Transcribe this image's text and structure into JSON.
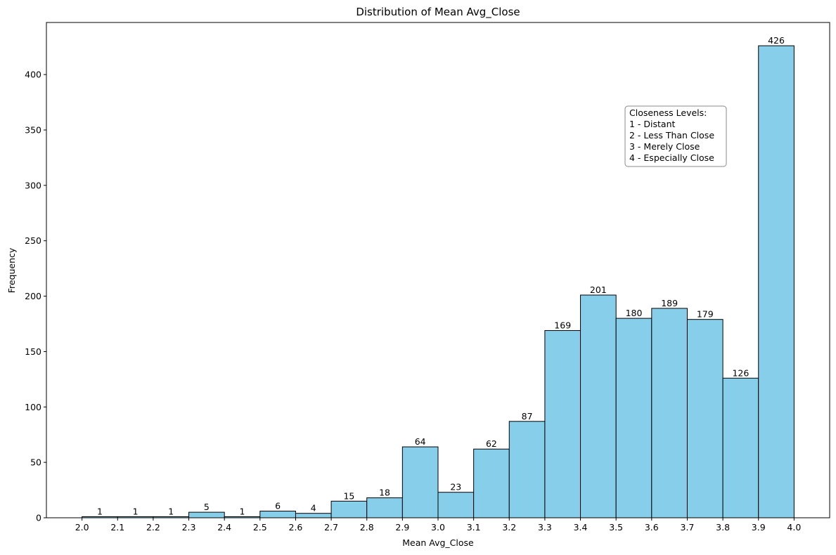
{
  "chart_data": {
    "type": "bar",
    "title": "Distribution of Mean Avg_Close",
    "xlabel": "Mean Avg_Close",
    "ylabel": "Frequency",
    "bin_edges": [
      2.0,
      2.1,
      2.2,
      2.3,
      2.4,
      2.5,
      2.6,
      2.7,
      2.8,
      2.9,
      3.0,
      3.1,
      3.2,
      3.3,
      3.4,
      3.5,
      3.6,
      3.7,
      3.8,
      3.9,
      4.0
    ],
    "values": [
      1,
      1,
      1,
      5,
      1,
      6,
      4,
      15,
      18,
      64,
      23,
      62,
      87,
      169,
      201,
      180,
      189,
      179,
      126,
      426
    ],
    "xlim": [
      1.9,
      4.1
    ],
    "ylim": [
      0,
      447
    ],
    "x_ticks": [
      "2.0",
      "2.1",
      "2.2",
      "2.3",
      "2.4",
      "2.5",
      "2.6",
      "2.7",
      "2.8",
      "2.9",
      "3.0",
      "3.1",
      "3.2",
      "3.3",
      "3.4",
      "3.5",
      "3.6",
      "3.7",
      "3.8",
      "3.9",
      "4.0"
    ],
    "y_ticks": [
      0,
      50,
      100,
      150,
      200,
      250,
      300,
      350,
      400
    ],
    "grid": false,
    "bar_color": "#87CEEB",
    "edge_color": "#000000",
    "annotation": {
      "lines": [
        "Closeness Levels:",
        "1 - Distant",
        "2 - Less Than Close",
        "3 - Merely Close",
        "4 - Especially Close"
      ],
      "placement": "upper-right"
    }
  }
}
